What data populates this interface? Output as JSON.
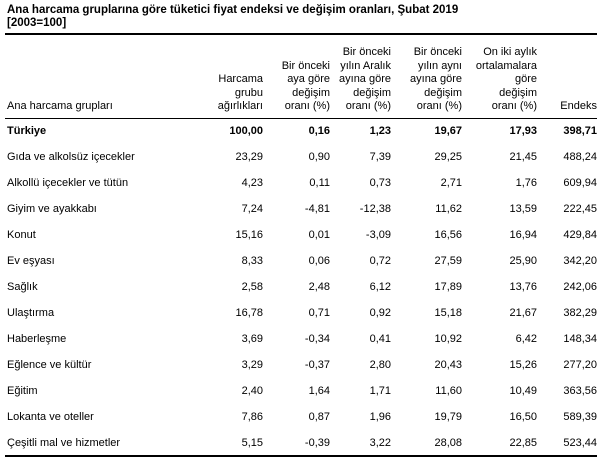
{
  "header": {
    "title": "Ana harcama gruplarına göre tüketici fiyat endeksi ve değişim oranları, Şubat 2019",
    "base_note": "[2003=100]"
  },
  "colors": {
    "text": "#000000",
    "rules": "#000000",
    "background": "#ffffff"
  },
  "chart_data": {
    "type": "table",
    "title": "Ana harcama gruplarına göre tüketici fiyat endeksi ve değişim oranları, Şubat 2019 [2003=100]",
    "columns": [
      {
        "label": "Ana harcama grupları"
      },
      {
        "label": "Harcama\ngrubu\nağırlıkları"
      },
      {
        "label": "Bir önceki\naya göre\ndeğişim\noranı (%)"
      },
      {
        "label": "Bir önceki\nyılın Aralık\nayına göre\ndeğişim\noranı (%)"
      },
      {
        "label": "Bir önceki\nyılın aynı\nayına göre\ndeğişim\noranı (%)"
      },
      {
        "label": "On iki aylık\nortalamalara\ngöre\ndeğişim\noranı (%)"
      },
      {
        "label": "Endeks"
      }
    ],
    "rows": [
      {
        "group": "Türkiye",
        "bold": true,
        "values": [
          "100,00",
          "0,16",
          "1,23",
          "19,67",
          "17,93",
          "398,71"
        ]
      },
      {
        "group": "Gıda ve alkolsüz içecekler",
        "bold": false,
        "values": [
          "23,29",
          "0,90",
          "7,39",
          "29,25",
          "21,45",
          "488,24"
        ]
      },
      {
        "group": "Alkollü içecekler ve tütün",
        "bold": false,
        "values": [
          "4,23",
          "0,11",
          "0,73",
          "2,71",
          "1,76",
          "609,94"
        ]
      },
      {
        "group": "Giyim ve ayakkabı",
        "bold": false,
        "values": [
          "7,24",
          "-4,81",
          "-12,38",
          "11,62",
          "13,59",
          "222,45"
        ]
      },
      {
        "group": "Konut",
        "bold": false,
        "values": [
          "15,16",
          "0,01",
          "-3,09",
          "16,56",
          "16,94",
          "429,84"
        ]
      },
      {
        "group": "Ev eşyası",
        "bold": false,
        "values": [
          "8,33",
          "0,06",
          "0,72",
          "27,59",
          "25,90",
          "342,20"
        ]
      },
      {
        "group": "Sağlık",
        "bold": false,
        "values": [
          "2,58",
          "2,48",
          "6,12",
          "17,89",
          "13,76",
          "242,06"
        ]
      },
      {
        "group": "Ulaştırma",
        "bold": false,
        "values": [
          "16,78",
          "0,71",
          "0,92",
          "15,18",
          "21,67",
          "382,29"
        ]
      },
      {
        "group": "Haberleşme",
        "bold": false,
        "values": [
          "3,69",
          "-0,34",
          "0,41",
          "10,92",
          "6,42",
          "148,34"
        ]
      },
      {
        "group": "Eğlence ve kültür",
        "bold": false,
        "values": [
          "3,29",
          "-0,37",
          "2,80",
          "20,43",
          "15,26",
          "277,20"
        ]
      },
      {
        "group": "Eğitim",
        "bold": false,
        "values": [
          "2,40",
          "1,64",
          "1,71",
          "11,60",
          "10,49",
          "363,56"
        ]
      },
      {
        "group": "Lokanta ve oteller",
        "bold": false,
        "values": [
          "7,86",
          "0,87",
          "1,96",
          "19,79",
          "16,50",
          "589,39"
        ]
      },
      {
        "group": "Çeşitli mal ve hizmetler",
        "bold": false,
        "values": [
          "5,15",
          "-0,39",
          "3,22",
          "28,08",
          "22,85",
          "523,44"
        ]
      }
    ]
  }
}
